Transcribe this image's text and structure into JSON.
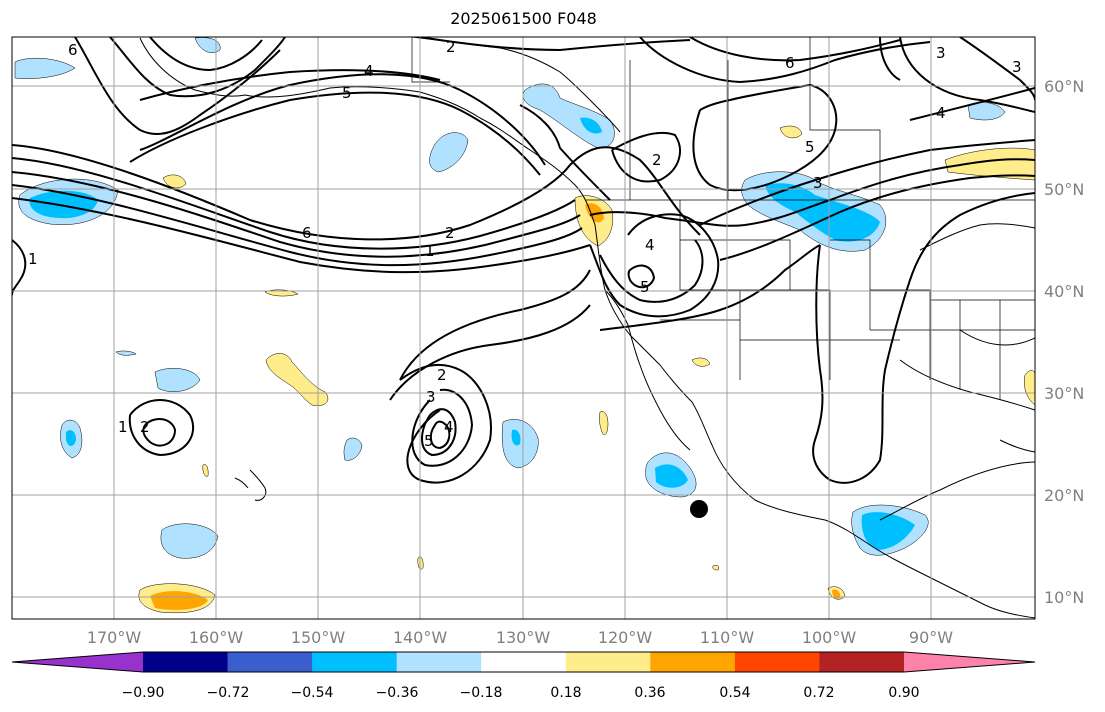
{
  "title": "2025061500 F048",
  "lon_ticks": [
    "170°W",
    "160°W",
    "150°W",
    "140°W",
    "130°W",
    "120°W",
    "110°W",
    "100°W",
    "90°W"
  ],
  "lat_ticks": [
    "60°N",
    "50°N",
    "40°N",
    "30°N",
    "20°N",
    "10°N"
  ],
  "colorbar": {
    "labels": [
      "−0.90",
      "−0.72",
      "−0.54",
      "−0.36",
      "−0.18",
      "0.18",
      "0.36",
      "0.54",
      "0.72",
      "0.90"
    ],
    "colors": [
      "#9932cc",
      "#00008b",
      "#3a5fcd",
      "#00bfff",
      "#b0e2ff",
      "#ffffff",
      "#ffec8b",
      "#ffa500",
      "#ff4500",
      "#b22222",
      "#ff82ab"
    ]
  },
  "contour_labels": [
    "6",
    "2",
    "4",
    "5",
    "6",
    "1",
    "2",
    "6",
    "3",
    "2",
    "5",
    "4",
    "5",
    "3",
    "4",
    "3",
    "1",
    "2",
    "2",
    "3",
    "4",
    "5",
    "1"
  ],
  "colors": {
    "light_blue": "#b0e2ff",
    "blue": "#00bfff",
    "light_yellow": "#ffec8b",
    "orange": "#ffa500",
    "grid": "#a0a0a0"
  }
}
